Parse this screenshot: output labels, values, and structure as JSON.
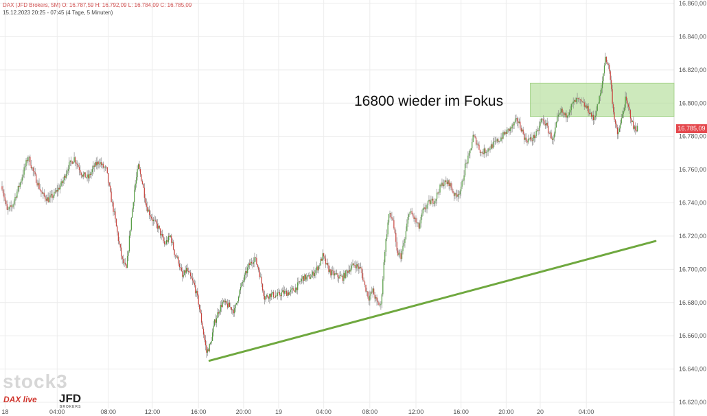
{
  "header": {
    "line1": "DAX (JFD Brokers, 5M)  O: 16.787,59  H: 16.792,09  L: 16.784,09  C: 16.785,09",
    "line2": "15.12.2023 20:25 - 07:45   (4 Tage, 5 Minuten)"
  },
  "watermark": {
    "stock": "stock3",
    "daxlive": "DAX live",
    "jfd": "JFD",
    "brokers": "BROKERS"
  },
  "last_price": "16.785,09",
  "colors": {
    "up": "#4f9a3c",
    "down": "#c8423c",
    "trendline": "#6fa83f",
    "zone": "#b8e0a0",
    "price_tag": "#e5484d"
  },
  "chart_data": {
    "type": "candlestick",
    "title": "",
    "annotation": "16800 wieder im Fokus",
    "ylim": [
      16620,
      16860
    ],
    "y_ticks": [
      "16.860,00",
      "16.840,00",
      "16.820,00",
      "16.800,00",
      "16.780,00",
      "16.760,00",
      "16.740,00",
      "16.720,00",
      "16.700,00",
      "16.680,00",
      "16.660,00",
      "16.640,00",
      "16.620,00"
    ],
    "y_tick_values": [
      16860,
      16840,
      16820,
      16800,
      16780,
      16760,
      16740,
      16720,
      16700,
      16680,
      16660,
      16640,
      16620
    ],
    "x_ticks": [
      {
        "label": "18",
        "i": 3
      },
      {
        "label": "04:00",
        "i": 55
      },
      {
        "label": "08:00",
        "i": 106
      },
      {
        "label": "12:00",
        "i": 150
      },
      {
        "label": "16:00",
        "i": 196
      },
      {
        "label": "20:00",
        "i": 241
      },
      {
        "label": "19",
        "i": 276
      },
      {
        "label": "04:00",
        "i": 321
      },
      {
        "label": "08:00",
        "i": 367
      },
      {
        "label": "12:00",
        "i": 413
      },
      {
        "label": "16:00",
        "i": 458
      },
      {
        "label": "20:00",
        "i": 503
      },
      {
        "label": "20",
        "i": 537
      },
      {
        "label": "04:00",
        "i": 583
      }
    ],
    "resistance_zone": [
      16792,
      16812
    ],
    "trendline": [
      {
        "i": 207,
        "price": 16645
      },
      {
        "i": 652,
        "price": 16717
      }
    ],
    "path_points": [
      [
        0,
        16750
      ],
      [
        5,
        16735
      ],
      [
        10,
        16738
      ],
      [
        18,
        16752
      ],
      [
        26,
        16768
      ],
      [
        32,
        16757
      ],
      [
        40,
        16745
      ],
      [
        46,
        16742
      ],
      [
        52,
        16745
      ],
      [
        60,
        16752
      ],
      [
        66,
        16762
      ],
      [
        72,
        16767
      ],
      [
        80,
        16757
      ],
      [
        86,
        16755
      ],
      [
        92,
        16762
      ],
      [
        97,
        16765
      ],
      [
        100,
        16762
      ],
      [
        104,
        16760
      ],
      [
        108,
        16745
      ],
      [
        112,
        16733
      ],
      [
        116,
        16718
      ],
      [
        120,
        16705
      ],
      [
        124,
        16700
      ],
      [
        128,
        16725
      ],
      [
        132,
        16748
      ],
      [
        136,
        16762
      ],
      [
        140,
        16752
      ],
      [
        144,
        16738
      ],
      [
        150,
        16730
      ],
      [
        156,
        16725
      ],
      [
        162,
        16715
      ],
      [
        168,
        16720
      ],
      [
        172,
        16710
      ],
      [
        176,
        16705
      ],
      [
        180,
        16695
      ],
      [
        184,
        16700
      ],
      [
        188,
        16695
      ],
      [
        192,
        16690
      ],
      [
        196,
        16680
      ],
      [
        200,
        16665
      ],
      [
        204,
        16650
      ],
      [
        208,
        16655
      ],
      [
        212,
        16668
      ],
      [
        216,
        16675
      ],
      [
        220,
        16680
      ],
      [
        226,
        16678
      ],
      [
        232,
        16675
      ],
      [
        236,
        16685
      ],
      [
        240,
        16692
      ],
      [
        246,
        16702
      ],
      [
        252,
        16707
      ],
      [
        256,
        16700
      ],
      [
        262,
        16683
      ],
      [
        268,
        16685
      ],
      [
        274,
        16684
      ],
      [
        280,
        16686
      ],
      [
        286,
        16686
      ],
      [
        292,
        16688
      ],
      [
        296,
        16691
      ],
      [
        300,
        16695
      ],
      [
        306,
        16695
      ],
      [
        310,
        16697
      ],
      [
        316,
        16702
      ],
      [
        320,
        16708
      ],
      [
        324,
        16702
      ],
      [
        328,
        16698
      ],
      [
        334,
        16696
      ],
      [
        340,
        16695
      ],
      [
        346,
        16700
      ],
      [
        352,
        16703
      ],
      [
        358,
        16700
      ],
      [
        362,
        16690
      ],
      [
        366,
        16683
      ],
      [
        370,
        16687
      ],
      [
        374,
        16680
      ],
      [
        378,
        16678
      ],
      [
        382,
        16712
      ],
      [
        386,
        16733
      ],
      [
        390,
        16730
      ],
      [
        394,
        16710
      ],
      [
        398,
        16708
      ],
      [
        402,
        16718
      ],
      [
        406,
        16735
      ],
      [
        410,
        16732
      ],
      [
        416,
        16725
      ],
      [
        420,
        16735
      ],
      [
        426,
        16740
      ],
      [
        432,
        16742
      ],
      [
        436,
        16748
      ],
      [
        440,
        16752
      ],
      [
        446,
        16752
      ],
      [
        452,
        16744
      ],
      [
        458,
        16748
      ],
      [
        462,
        16762
      ],
      [
        466,
        16768
      ],
      [
        470,
        16780
      ],
      [
        474,
        16776
      ],
      [
        478,
        16770
      ],
      [
        484,
        16772
      ],
      [
        490,
        16775
      ],
      [
        496,
        16778
      ],
      [
        502,
        16782
      ],
      [
        508,
        16785
      ],
      [
        514,
        16790
      ],
      [
        518,
        16785
      ],
      [
        522,
        16778
      ],
      [
        528,
        16778
      ],
      [
        534,
        16782
      ],
      [
        538,
        16790
      ],
      [
        542,
        16788
      ],
      [
        546,
        16782
      ],
      [
        550,
        16778
      ],
      [
        554,
        16790
      ],
      [
        558,
        16795
      ],
      [
        562,
        16792
      ],
      [
        566,
        16796
      ],
      [
        570,
        16800
      ],
      [
        574,
        16802
      ],
      [
        578,
        16800
      ],
      [
        582,
        16798
      ],
      [
        586,
        16795
      ],
      [
        590,
        16790
      ],
      [
        594,
        16798
      ],
      [
        598,
        16808
      ],
      [
        602,
        16828
      ],
      [
        606,
        16820
      ],
      [
        610,
        16795
      ],
      [
        614,
        16780
      ],
      [
        618,
        16790
      ],
      [
        622,
        16802
      ],
      [
        626,
        16795
      ],
      [
        630,
        16785
      ],
      [
        634,
        16785
      ]
    ]
  }
}
